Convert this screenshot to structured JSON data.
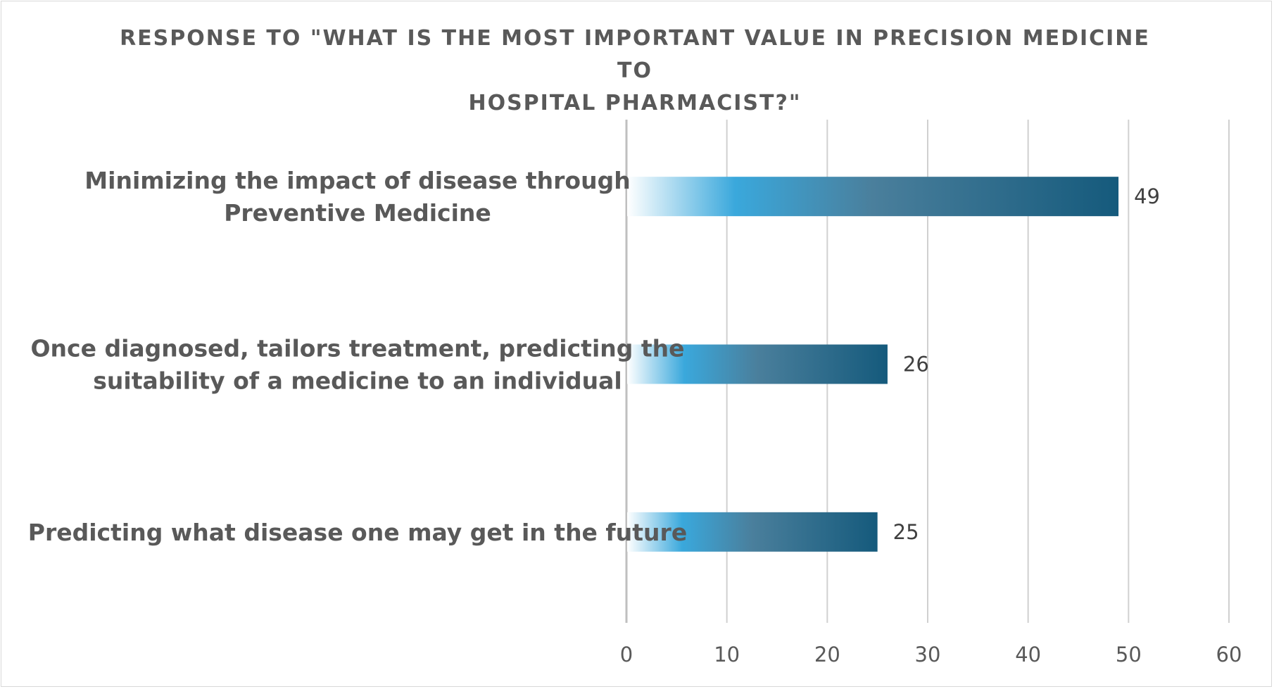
{
  "chart_data": {
    "type": "bar",
    "orientation": "horizontal",
    "title_lines": [
      "RESPONSE TO \"WHAT IS THE MOST IMPORTANT VALUE IN PRECISION MEDICINE TO",
      "HOSPITAL PHARMACIST?\""
    ],
    "categories": [
      {
        "lines": [
          "Minimizing the impact of disease through",
          "Preventive Medicine"
        ],
        "value": 49
      },
      {
        "lines": [
          "Once diagnosed, tailors treatment, predicting the",
          "suitability of a medicine to an individual"
        ],
        "value": 26
      },
      {
        "lines": [
          "Predicting what disease one may get in the future"
        ],
        "value": 25
      }
    ],
    "xlim": [
      0,
      60
    ],
    "xticks": [
      0,
      10,
      20,
      30,
      40,
      50,
      60
    ],
    "grid": "vertical",
    "legend": "none",
    "colors": {
      "bar_start": "#ffffff",
      "bar_light": "#3aa8dc",
      "bar_mid": "#4a7f9c",
      "bar_end": "#155a7c",
      "grid": "#d0d0d0",
      "axis": "#bfbfbf",
      "text": "#595959"
    }
  }
}
